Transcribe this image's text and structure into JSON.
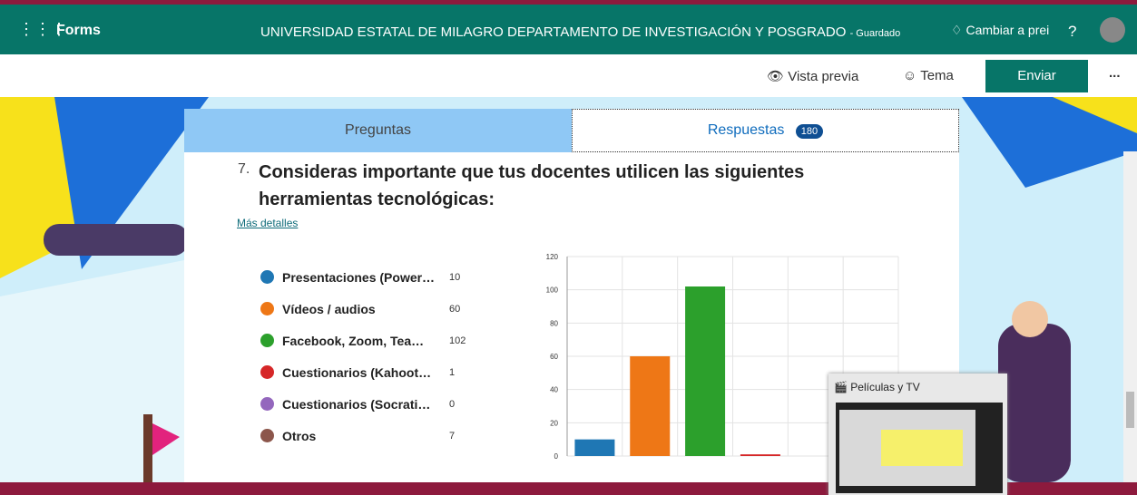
{
  "header": {
    "app": "Forms",
    "title": "UNIVERSIDAD ESTATAL DE MILAGRO DEPARTAMENTO DE INVESTIGACIÓN Y POSGRADO",
    "status": "- Guardado",
    "upgrade": "Cambiar a prei",
    "help": "?"
  },
  "toolbar": {
    "preview": "Vista previa",
    "theme": "Tema",
    "send": "Enviar",
    "more": "..."
  },
  "tabs": {
    "questions": "Preguntas",
    "responses": "Respuestas",
    "count": "180"
  },
  "question": {
    "number": "7.",
    "title": "Consideras importante que tus docentes utilicen las siguientes herramientas tecnológicas:",
    "details": "Más detalles",
    "chart": {
      "type": "bar",
      "categories": [
        "Presentaciones (Power…",
        "Vídeos / audios",
        "Facebook, Zoom, Tea…",
        "Cuestionarios (Kahoot…",
        "Cuestionarios (Socrati…",
        "Otros"
      ],
      "values": [
        10,
        60,
        102,
        1,
        0,
        7
      ],
      "colors": [
        "#1f77b4",
        "#ee7716",
        "#2ca02c",
        "#d62728",
        "#9467bd",
        "#8c564b"
      ],
      "ylim": [
        0,
        120
      ],
      "yticks": [
        0,
        20,
        40,
        60,
        80,
        100,
        120
      ],
      "grid": true
    }
  },
  "popup": {
    "title": "Películas y TV"
  }
}
